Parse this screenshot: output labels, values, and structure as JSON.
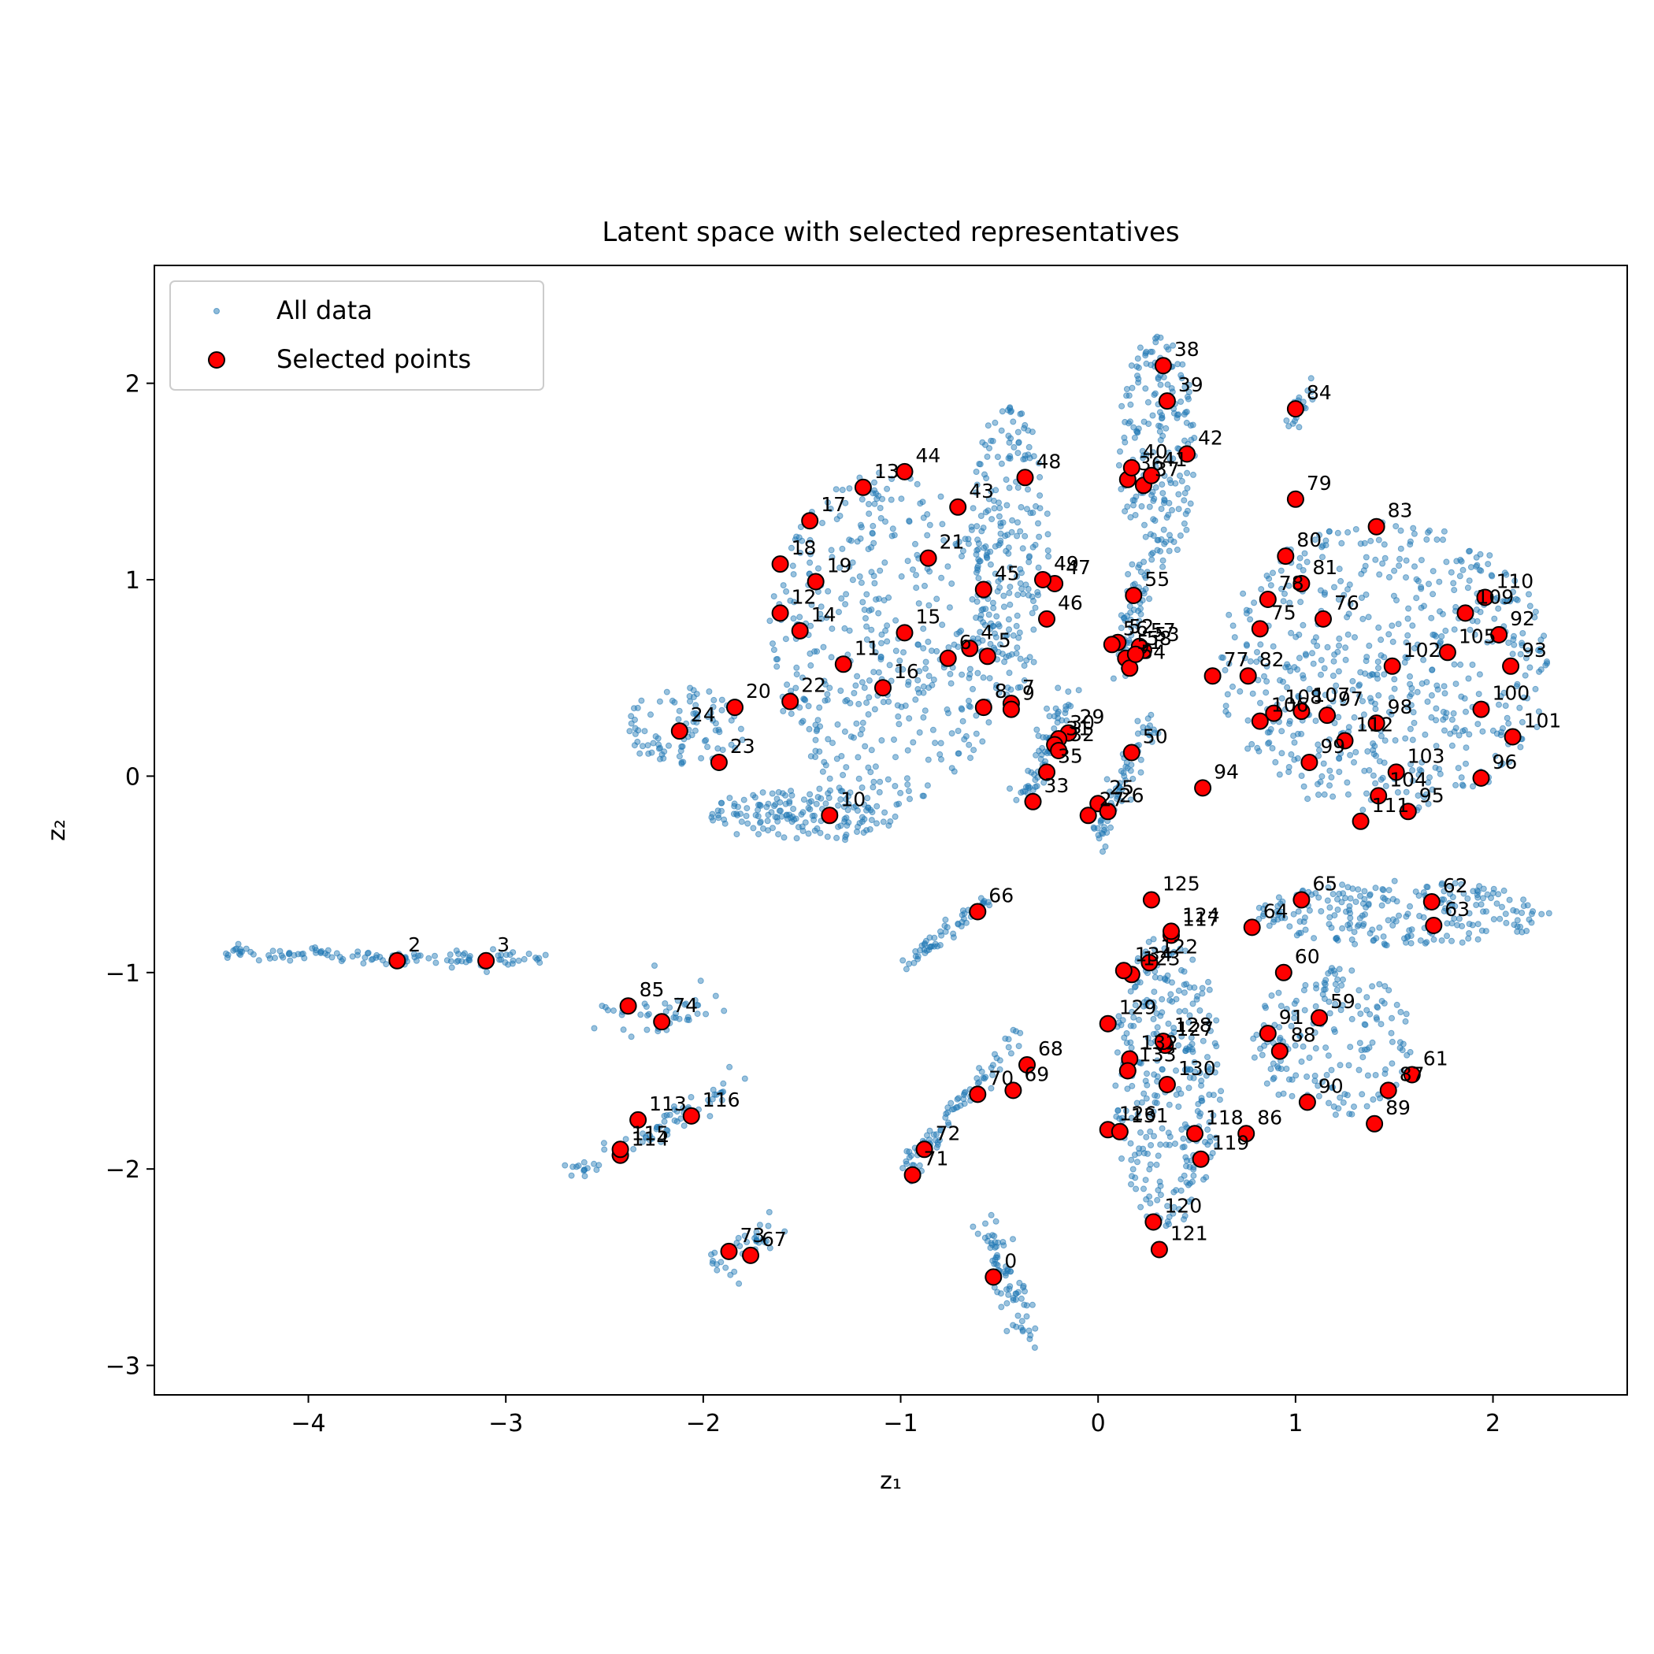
{
  "chart_data": {
    "type": "scatter",
    "title": "Latent space with selected representatives",
    "xlabel": "z₁",
    "ylabel": "z₂",
    "xlim": [
      -4.78,
      2.68
    ],
    "ylim": [
      -3.15,
      2.6
    ],
    "xticks": [
      -4,
      -3,
      -2,
      -1,
      0,
      1,
      2
    ],
    "xtick_labels": [
      "−4",
      "−3",
      "−2",
      "−1",
      "0",
      "1",
      "2"
    ],
    "yticks": [
      -3,
      -2,
      -1,
      0,
      1,
      2
    ],
    "ytick_labels": [
      "−3",
      "−2",
      "−1",
      "0",
      "1",
      "2"
    ],
    "grid": false,
    "legend_position": "top-left",
    "legend": [
      "All data",
      "Selected points"
    ],
    "colors": {
      "background_points": "#1f77b4",
      "selected_fill": "#ff0000",
      "selected_edge": "#000000"
    },
    "background_clusters": [
      {
        "type": "blob",
        "cx": -1.05,
        "cy": 0.7,
        "rx": 0.62,
        "ry": 0.85,
        "n": 420
      },
      {
        "type": "blob",
        "cx": -1.5,
        "cy": -0.2,
        "rx": 0.48,
        "ry": 0.14,
        "n": 160
      },
      {
        "type": "blob",
        "cx": -2.1,
        "cy": 0.25,
        "rx": 0.33,
        "ry": 0.2,
        "n": 90
      },
      {
        "type": "blob",
        "cx": -0.45,
        "cy": 1.15,
        "rx": 0.2,
        "ry": 0.75,
        "n": 210
      },
      {
        "type": "blob",
        "cx": 0.3,
        "cy": 1.65,
        "rx": 0.2,
        "ry": 0.6,
        "n": 190
      },
      {
        "type": "blob",
        "cx": 1.45,
        "cy": 0.55,
        "rx": 0.85,
        "ry": 0.75,
        "n": 560
      },
      {
        "type": "blob",
        "cx": 1.55,
        "cy": -0.7,
        "rx": 0.75,
        "ry": 0.17,
        "n": 230
      },
      {
        "type": "blob",
        "cx": 0.35,
        "cy": -1.55,
        "rx": 0.28,
        "ry": 0.75,
        "n": 300
      },
      {
        "type": "blob",
        "cx": 1.2,
        "cy": -1.35,
        "rx": 0.42,
        "ry": 0.38,
        "n": 170
      },
      {
        "type": "line",
        "x0": -4.45,
        "y0": -0.9,
        "x1": -2.8,
        "y1": -0.94,
        "spread": 0.02,
        "n": 120
      },
      {
        "type": "line",
        "x0": -2.55,
        "y0": -1.2,
        "x1": -2.0,
        "y1": -1.2,
        "spread": 0.06,
        "n": 45
      },
      {
        "type": "line",
        "x0": -2.7,
        "y0": -2.05,
        "x1": -1.8,
        "y1": -1.55,
        "spread": 0.03,
        "n": 70
      },
      {
        "type": "line",
        "x0": -1.95,
        "y0": -2.5,
        "x1": -1.65,
        "y1": -2.3,
        "spread": 0.04,
        "n": 35
      },
      {
        "type": "line",
        "x0": -1.0,
        "y0": -2.05,
        "x1": -0.4,
        "y1": -1.3,
        "spread": 0.03,
        "n": 85
      },
      {
        "type": "line",
        "x0": -1.0,
        "y0": -0.98,
        "x1": -0.55,
        "y1": -0.62,
        "spread": 0.02,
        "n": 55
      },
      {
        "type": "line",
        "x0": -0.55,
        "y0": -2.3,
        "x1": -0.35,
        "y1": -2.85,
        "spread": 0.04,
        "n": 75
      },
      {
        "type": "line",
        "x0": -0.02,
        "y0": -0.35,
        "x1": 0.28,
        "y1": 0.3,
        "spread": 0.03,
        "n": 75
      },
      {
        "type": "line",
        "x0": -0.38,
        "y0": -0.12,
        "x1": -0.15,
        "y1": 0.4,
        "spread": 0.03,
        "n": 70
      },
      {
        "type": "line",
        "x0": 0.12,
        "y0": 0.55,
        "x1": 0.22,
        "y1": 1.1,
        "spread": 0.03,
        "n": 55
      },
      {
        "type": "line",
        "x0": 0.95,
        "y0": 1.75,
        "x1": 1.08,
        "y1": 2.0,
        "spread": 0.02,
        "n": 20
      }
    ],
    "selected_points": [
      {
        "label": "0",
        "x": -0.53,
        "y": -2.55
      },
      {
        "label": "2",
        "x": -3.55,
        "y": -0.94
      },
      {
        "label": "3",
        "x": -3.1,
        "y": -0.94
      },
      {
        "label": "4",
        "x": -0.65,
        "y": 0.65
      },
      {
        "label": "5",
        "x": -0.56,
        "y": 0.61
      },
      {
        "label": "6",
        "x": -0.76,
        "y": 0.6
      },
      {
        "label": "7",
        "x": -0.44,
        "y": 0.37
      },
      {
        "label": "8",
        "x": -0.58,
        "y": 0.35
      },
      {
        "label": "9",
        "x": -0.44,
        "y": 0.34
      },
      {
        "label": "10",
        "x": -1.36,
        "y": -0.2
      },
      {
        "label": "11",
        "x": -1.29,
        "y": 0.57
      },
      {
        "label": "12",
        "x": -1.61,
        "y": 0.83
      },
      {
        "label": "13",
        "x": -1.19,
        "y": 1.47
      },
      {
        "label": "14",
        "x": -1.51,
        "y": 0.74
      },
      {
        "label": "15",
        "x": -0.98,
        "y": 0.73
      },
      {
        "label": "16",
        "x": -1.09,
        "y": 0.45
      },
      {
        "label": "17",
        "x": -1.46,
        "y": 1.3
      },
      {
        "label": "18",
        "x": -1.61,
        "y": 1.08
      },
      {
        "label": "19",
        "x": -1.43,
        "y": 0.99
      },
      {
        "label": "20",
        "x": -1.84,
        "y": 0.35
      },
      {
        "label": "21",
        "x": -0.86,
        "y": 1.11
      },
      {
        "label": "22",
        "x": -1.56,
        "y": 0.38
      },
      {
        "label": "23",
        "x": -1.92,
        "y": 0.07
      },
      {
        "label": "24",
        "x": -2.12,
        "y": 0.23
      },
      {
        "label": "25",
        "x": 0.0,
        "y": -0.14
      },
      {
        "label": "26",
        "x": 0.05,
        "y": -0.18
      },
      {
        "label": "27",
        "x": -0.05,
        "y": -0.2
      },
      {
        "label": "29",
        "x": -0.15,
        "y": 0.22
      },
      {
        "label": "30",
        "x": -0.2,
        "y": 0.19
      },
      {
        "label": "31",
        "x": -0.22,
        "y": 0.16
      },
      {
        "label": "32",
        "x": -0.2,
        "y": 0.13
      },
      {
        "label": "33",
        "x": -0.33,
        "y": -0.13
      },
      {
        "label": "35",
        "x": -0.26,
        "y": 0.02
      },
      {
        "label": "36",
        "x": 0.15,
        "y": 1.51
      },
      {
        "label": "37",
        "x": 0.23,
        "y": 1.48
      },
      {
        "label": "38",
        "x": 0.33,
        "y": 2.09
      },
      {
        "label": "39",
        "x": 0.35,
        "y": 1.91
      },
      {
        "label": "40",
        "x": 0.17,
        "y": 1.57
      },
      {
        "label": "41",
        "x": 0.27,
        "y": 1.53
      },
      {
        "label": "42",
        "x": 0.45,
        "y": 1.64
      },
      {
        "label": "43",
        "x": -0.71,
        "y": 1.37
      },
      {
        "label": "44",
        "x": -0.98,
        "y": 1.55
      },
      {
        "label": "45",
        "x": -0.58,
        "y": 0.95
      },
      {
        "label": "46",
        "x": -0.26,
        "y": 0.8
      },
      {
        "label": "47",
        "x": -0.22,
        "y": 0.98
      },
      {
        "label": "48",
        "x": -0.37,
        "y": 1.52
      },
      {
        "label": "49",
        "x": -0.28,
        "y": 1.0
      },
      {
        "label": "50",
        "x": 0.17,
        "y": 0.12
      },
      {
        "label": "51",
        "x": 0.14,
        "y": 0.6
      },
      {
        "label": "52",
        "x": 0.1,
        "y": 0.68
      },
      {
        "label": "53",
        "x": 0.23,
        "y": 0.64
      },
      {
        "label": "54",
        "x": 0.16,
        "y": 0.55
      },
      {
        "label": "55",
        "x": 0.18,
        "y": 0.92
      },
      {
        "label": "56",
        "x": 0.07,
        "y": 0.67
      },
      {
        "label": "57",
        "x": 0.21,
        "y": 0.66
      },
      {
        "label": "58",
        "x": 0.19,
        "y": 0.62
      },
      {
        "label": "59",
        "x": 1.12,
        "y": -1.23
      },
      {
        "label": "60",
        "x": 0.94,
        "y": -1.0
      },
      {
        "label": "61",
        "x": 1.59,
        "y": -1.52
      },
      {
        "label": "62",
        "x": 1.69,
        "y": -0.64
      },
      {
        "label": "63",
        "x": 1.7,
        "y": -0.76
      },
      {
        "label": "64",
        "x": 0.78,
        "y": -0.77
      },
      {
        "label": "65",
        "x": 1.03,
        "y": -0.63
      },
      {
        "label": "66",
        "x": -0.61,
        "y": -0.69
      },
      {
        "label": "67",
        "x": -1.76,
        "y": -2.44
      },
      {
        "label": "68",
        "x": -0.36,
        "y": -1.47
      },
      {
        "label": "69",
        "x": -0.43,
        "y": -1.6
      },
      {
        "label": "70",
        "x": -0.61,
        "y": -1.62
      },
      {
        "label": "71",
        "x": -0.94,
        "y": -2.03
      },
      {
        "label": "72",
        "x": -0.88,
        "y": -1.9
      },
      {
        "label": "73",
        "x": -1.87,
        "y": -2.42
      },
      {
        "label": "74",
        "x": -2.21,
        "y": -1.25
      },
      {
        "label": "75",
        "x": 0.82,
        "y": 0.75
      },
      {
        "label": "76",
        "x": 1.14,
        "y": 0.8
      },
      {
        "label": "77",
        "x": 0.58,
        "y": 0.51
      },
      {
        "label": "78",
        "x": 0.86,
        "y": 0.9
      },
      {
        "label": "79",
        "x": 1.0,
        "y": 1.41
      },
      {
        "label": "80",
        "x": 0.95,
        "y": 1.12
      },
      {
        "label": "81",
        "x": 1.03,
        "y": 0.98
      },
      {
        "label": "82",
        "x": 0.76,
        "y": 0.51
      },
      {
        "label": "83",
        "x": 1.41,
        "y": 1.27
      },
      {
        "label": "84",
        "x": 1.0,
        "y": 1.87
      },
      {
        "label": "85",
        "x": -2.38,
        "y": -1.17
      },
      {
        "label": "86",
        "x": 0.75,
        "y": -1.82
      },
      {
        "label": "87",
        "x": 1.47,
        "y": -1.6
      },
      {
        "label": "88",
        "x": 0.92,
        "y": -1.4
      },
      {
        "label": "89",
        "x": 1.4,
        "y": -1.77
      },
      {
        "label": "90",
        "x": 1.06,
        "y": -1.66
      },
      {
        "label": "91",
        "x": 0.86,
        "y": -1.31
      },
      {
        "label": "92",
        "x": 2.03,
        "y": 0.72
      },
      {
        "label": "93",
        "x": 2.09,
        "y": 0.56
      },
      {
        "label": "94",
        "x": 0.53,
        "y": -0.06
      },
      {
        "label": "95",
        "x": 1.57,
        "y": -0.18
      },
      {
        "label": "96",
        "x": 1.94,
        "y": -0.01
      },
      {
        "label": "97",
        "x": 1.16,
        "y": 0.31
      },
      {
        "label": "98",
        "x": 1.41,
        "y": 0.27
      },
      {
        "label": "99",
        "x": 1.07,
        "y": 0.07
      },
      {
        "label": "100",
        "x": 1.94,
        "y": 0.34
      },
      {
        "label": "101",
        "x": 2.1,
        "y": 0.2
      },
      {
        "label": "102",
        "x": 1.49,
        "y": 0.56
      },
      {
        "label": "103",
        "x": 1.51,
        "y": 0.02
      },
      {
        "label": "104",
        "x": 1.42,
        "y": -0.1
      },
      {
        "label": "105",
        "x": 1.77,
        "y": 0.63
      },
      {
        "label": "106",
        "x": 0.82,
        "y": 0.28
      },
      {
        "label": "107",
        "x": 1.03,
        "y": 0.33
      },
      {
        "label": "108",
        "x": 0.89,
        "y": 0.32
      },
      {
        "label": "109",
        "x": 1.86,
        "y": 0.83
      },
      {
        "label": "110",
        "x": 1.96,
        "y": 0.91
      },
      {
        "label": "111",
        "x": 1.33,
        "y": -0.23
      },
      {
        "label": "112",
        "x": 1.25,
        "y": 0.18
      },
      {
        "label": "113",
        "x": -2.33,
        "y": -1.75
      },
      {
        "label": "114",
        "x": -2.42,
        "y": -1.93
      },
      {
        "label": "115",
        "x": -2.42,
        "y": -1.9
      },
      {
        "label": "116",
        "x": -2.06,
        "y": -1.73
      },
      {
        "label": "117",
        "x": 0.37,
        "y": -0.81
      },
      {
        "label": "118",
        "x": 0.49,
        "y": -1.82
      },
      {
        "label": "119",
        "x": 0.52,
        "y": -1.95
      },
      {
        "label": "120",
        "x": 0.28,
        "y": -2.27
      },
      {
        "label": "121",
        "x": 0.31,
        "y": -2.41
      },
      {
        "label": "122",
        "x": 0.26,
        "y": -0.95
      },
      {
        "label": "123",
        "x": 0.17,
        "y": -1.01
      },
      {
        "label": "124",
        "x": 0.37,
        "y": -0.79
      },
      {
        "label": "125",
        "x": 0.27,
        "y": -0.63
      },
      {
        "label": "126",
        "x": 0.05,
        "y": -1.8
      },
      {
        "label": "127",
        "x": 0.34,
        "y": -1.37
      },
      {
        "label": "128",
        "x": 0.33,
        "y": -1.35
      },
      {
        "label": "129",
        "x": 0.05,
        "y": -1.26
      },
      {
        "label": "130",
        "x": 0.35,
        "y": -1.57
      },
      {
        "label": "131",
        "x": 0.11,
        "y": -1.81
      },
      {
        "label": "132",
        "x": 0.16,
        "y": -1.44
      },
      {
        "label": "133",
        "x": 0.15,
        "y": -1.5
      },
      {
        "label": "134",
        "x": 0.13,
        "y": -0.99
      }
    ]
  }
}
